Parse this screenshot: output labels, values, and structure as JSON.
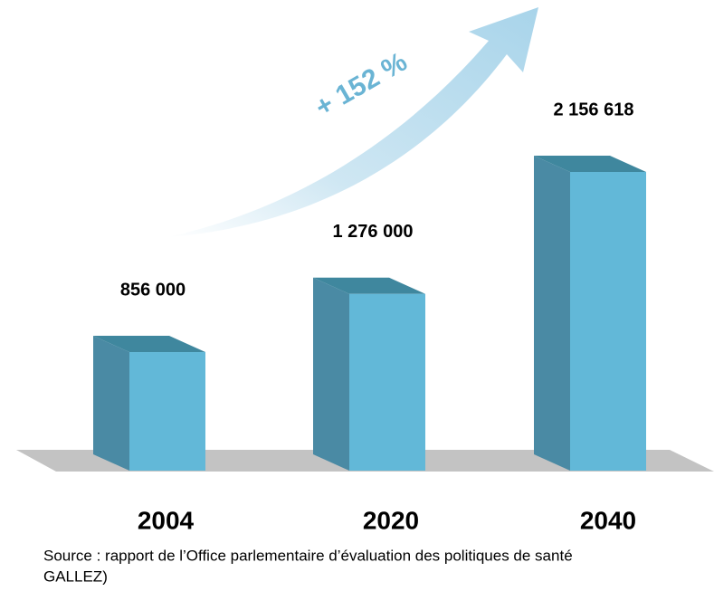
{
  "chart_data": {
    "type": "bar3d",
    "categories": [
      "2004",
      "2020",
      "2040"
    ],
    "values": [
      856000,
      1276000,
      2156618
    ],
    "value_labels": [
      "856 000",
      "1 276 000",
      "2 156 618"
    ],
    "color": "#62b8d8",
    "annotation": "+ 152 %",
    "source": [
      "Source : rapport de l’Office parlementaire d’évaluation des politiques de santé",
      "GALLEZ)"
    ]
  }
}
